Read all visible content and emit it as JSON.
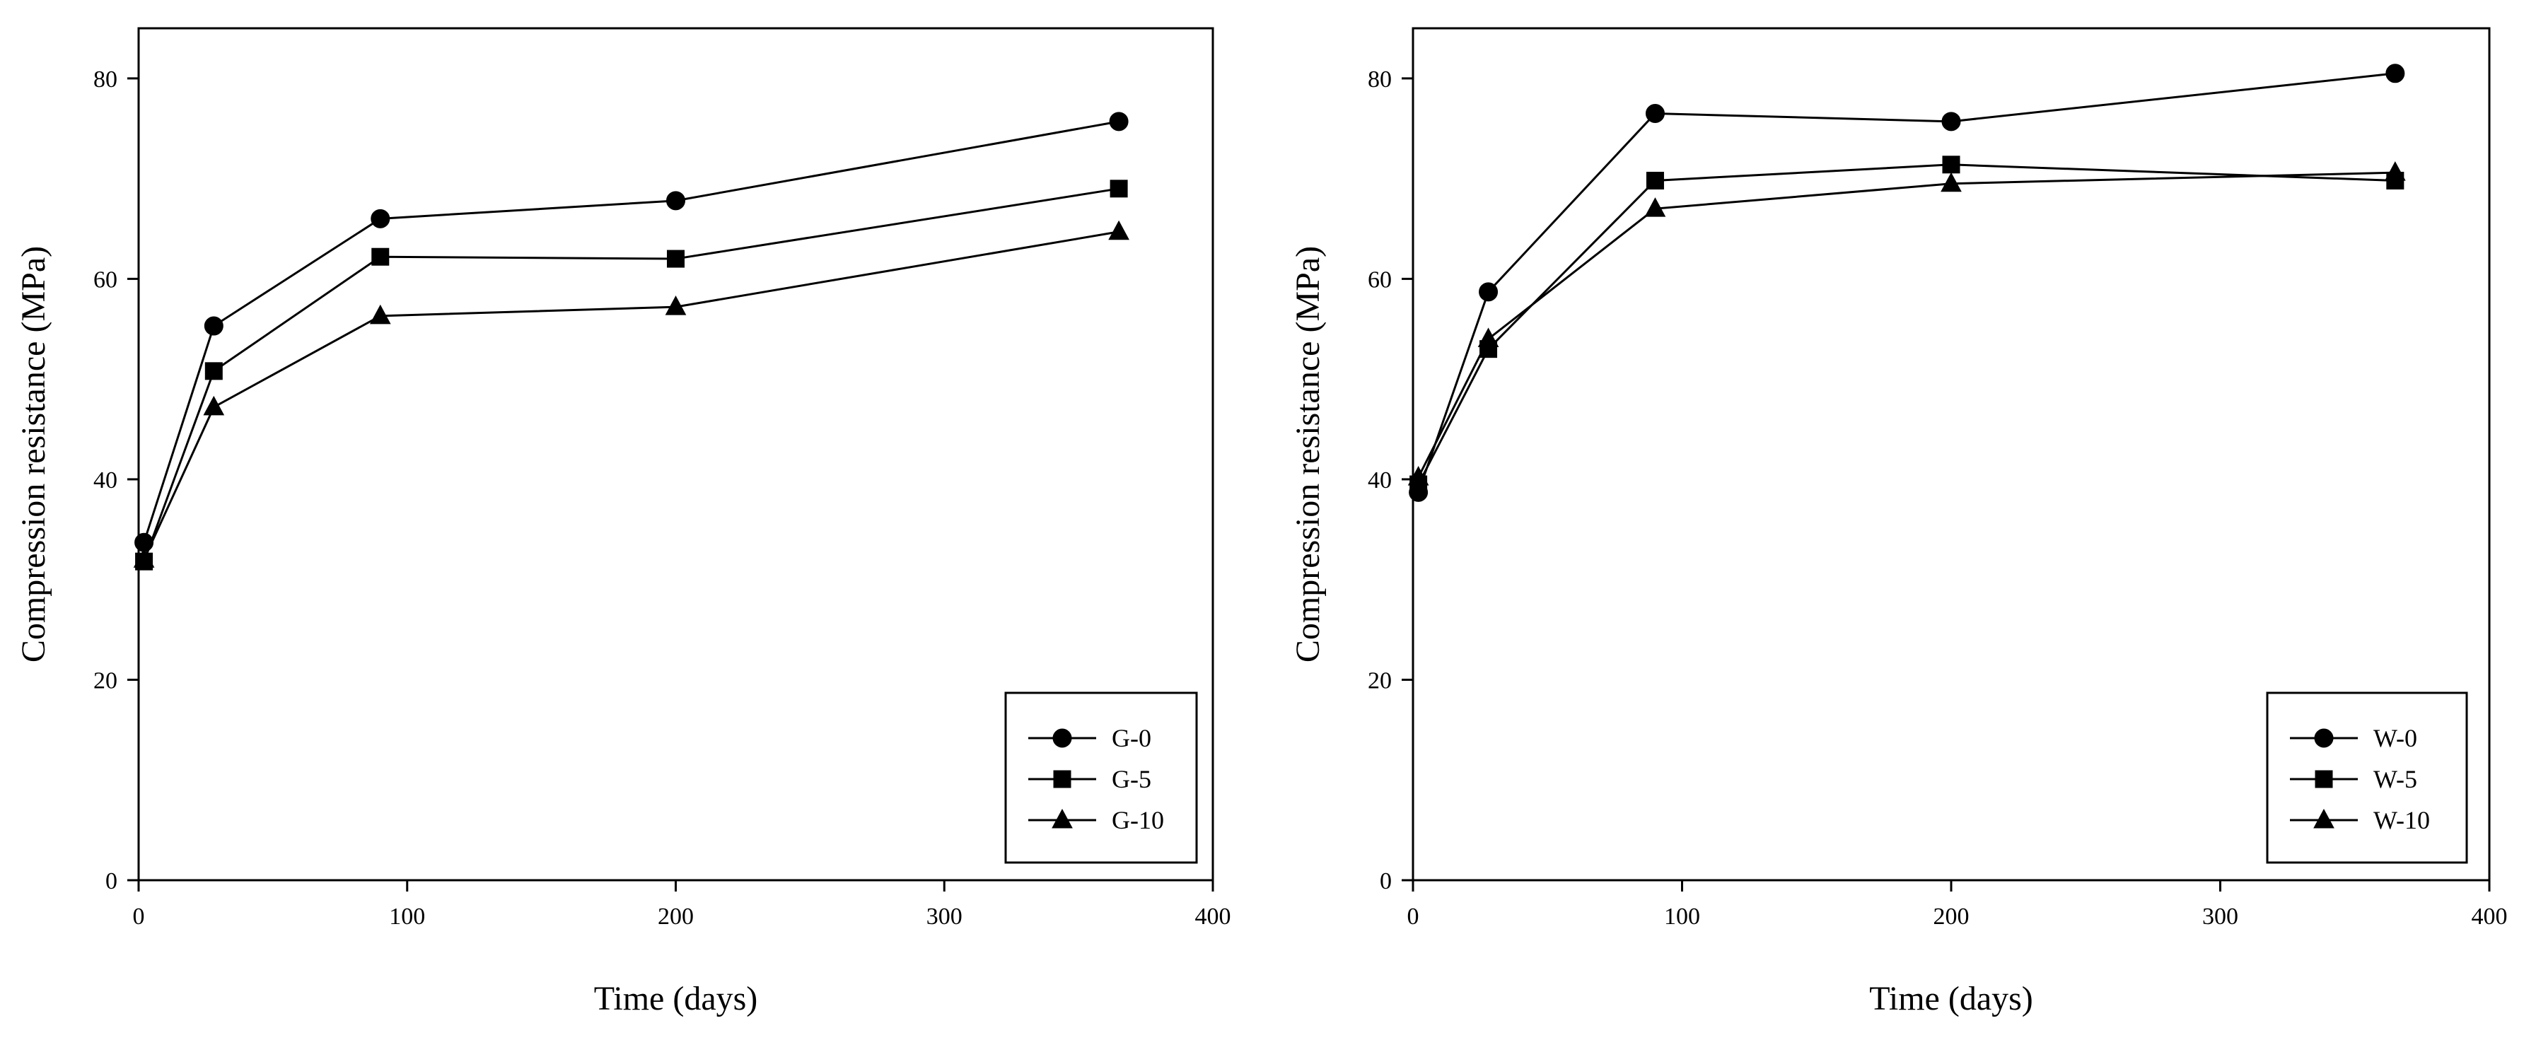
{
  "chart_data": [
    {
      "type": "line",
      "title": "",
      "xlabel": "Time (days)",
      "ylabel": "Compression resistance (MPa)",
      "xlim": [
        0,
        400
      ],
      "ylim": [
        0,
        85
      ],
      "x_ticks": [
        0,
        100,
        200,
        300,
        400
      ],
      "y_ticks": [
        0,
        20,
        40,
        60,
        80
      ],
      "grid": false,
      "legend_position": "bottom-right",
      "series": [
        {
          "name": "G-0",
          "marker": "circle",
          "x": [
            2,
            28,
            90,
            200,
            365
          ],
          "values": [
            33.7,
            55.3,
            66.0,
            67.8,
            75.7
          ]
        },
        {
          "name": "G-5",
          "marker": "square",
          "x": [
            2,
            28,
            90,
            200,
            365
          ],
          "values": [
            31.8,
            50.8,
            62.2,
            62.0,
            69.0
          ]
        },
        {
          "name": "G-10",
          "marker": "triangle",
          "x": [
            2,
            28,
            90,
            200,
            365
          ],
          "values": [
            32.0,
            47.2,
            56.3,
            57.2,
            64.7
          ]
        }
      ]
    },
    {
      "type": "line",
      "title": "",
      "xlabel": "Time (days)",
      "ylabel": "Compression resistance (MPa)",
      "xlim": [
        0,
        400
      ],
      "ylim": [
        0,
        85
      ],
      "x_ticks": [
        0,
        100,
        200,
        300,
        400
      ],
      "y_ticks": [
        0,
        20,
        40,
        60,
        80
      ],
      "grid": false,
      "legend_position": "bottom-right",
      "series": [
        {
          "name": "W-0",
          "marker": "circle",
          "x": [
            2,
            28,
            90,
            200,
            365
          ],
          "values": [
            38.7,
            58.7,
            76.5,
            75.7,
            80.5
          ]
        },
        {
          "name": "W-5",
          "marker": "square",
          "x": [
            2,
            28,
            90,
            200,
            365
          ],
          "values": [
            39.5,
            53.0,
            69.8,
            71.4,
            69.8
          ]
        },
        {
          "name": "W-10",
          "marker": "triangle",
          "x": [
            2,
            28,
            90,
            200,
            365
          ],
          "values": [
            40.2,
            54.0,
            67.0,
            69.5,
            70.6
          ]
        }
      ]
    }
  ]
}
